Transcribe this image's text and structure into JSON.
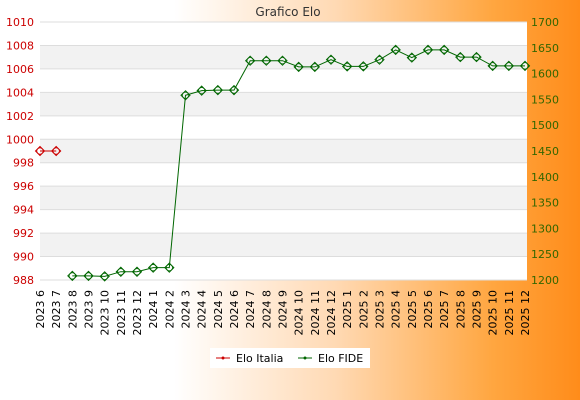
{
  "chart_data": {
    "type": "line",
    "title": "Grafico Elo",
    "categories": [
      "2023 6",
      "2023 7",
      "2023 8",
      "2023 9",
      "2023 10",
      "2023 11",
      "2023 12",
      "2024 1",
      "2024 2",
      "2024 3",
      "2024 4",
      "2024 5",
      "2024 6",
      "2024 7",
      "2024 8",
      "2024 9",
      "2024 10",
      "2024 11",
      "2024 12",
      "2025 1",
      "2025 2",
      "2025 3",
      "2025 4",
      "2025 5",
      "2025 6",
      "2025 7",
      "2025 8",
      "2025 9",
      "2025 10",
      "2025 11",
      "2025 12"
    ],
    "left_axis": {
      "ylim": [
        988,
        1010
      ],
      "ticks": [
        988,
        990,
        992,
        994,
        996,
        998,
        1000,
        1002,
        1004,
        1006,
        1008,
        1010
      ],
      "color": "#cc0000"
    },
    "right_axis": {
      "ylim": [
        1200,
        1700
      ],
      "ticks": [
        1200,
        1250,
        1300,
        1350,
        1400,
        1450,
        1500,
        1550,
        1600,
        1650,
        1700
      ],
      "color": "#336600"
    },
    "grid": true,
    "legend_position": "bottom",
    "series": [
      {
        "name": "Elo Italia",
        "axis": "left",
        "color": "#cc0000",
        "values": [
          999,
          999,
          null,
          null,
          null,
          null,
          null,
          null,
          null,
          null,
          null,
          null,
          null,
          null,
          null,
          null,
          null,
          null,
          null,
          null,
          null,
          null,
          null,
          null,
          null,
          null,
          null,
          null,
          null,
          null,
          null
        ]
      },
      {
        "name": "Elo FIDE",
        "axis": "right",
        "color": "#006600",
        "values": [
          null,
          null,
          1208,
          1208,
          1207,
          1216,
          1216,
          1224,
          1224,
          1558,
          1567,
          1568,
          1568,
          1625,
          1625,
          1625,
          1613,
          1613,
          1627,
          1614,
          1614,
          1627,
          1646,
          1631,
          1646,
          1646,
          1632,
          1632,
          1615,
          1615,
          1615
        ]
      }
    ]
  }
}
